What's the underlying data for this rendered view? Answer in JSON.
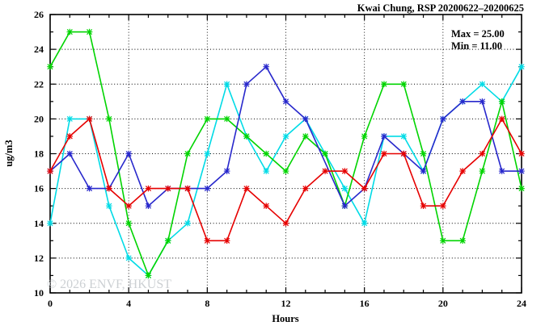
{
  "title": "Kwai Chung, RSP 20200622–20200625",
  "legend": {
    "max_label": "Max = 25.00",
    "min_label": "Min = 11.00"
  },
  "watermark": "© 2026 ENVF, HKUST",
  "chart_data": {
    "type": "line",
    "title": "Kwai Chung, RSP 20200622–20200625",
    "xlabel": "Hours",
    "ylabel": "ug/m3",
    "xlim": [
      0,
      24
    ],
    "ylim": [
      10,
      26
    ],
    "x_major_ticks": [
      0,
      4,
      8,
      12,
      16,
      20,
      24
    ],
    "y_major_ticks": [
      10,
      12,
      14,
      16,
      18,
      20,
      22,
      24,
      26
    ],
    "x_minor_step": 1,
    "y_minor_step": 1,
    "grid": "dotted-at-major-ticks",
    "legend_position": "top-right-inside",
    "x": [
      0,
      1,
      2,
      3,
      4,
      5,
      6,
      7,
      8,
      9,
      10,
      11,
      12,
      13,
      14,
      15,
      16,
      17,
      18,
      19,
      20,
      21,
      22,
      23,
      24
    ],
    "series": [
      {
        "name": "series-cyan",
        "color": "#00dbe6",
        "values": [
          14,
          20,
          20,
          15,
          12,
          11,
          13,
          14,
          18,
          22,
          19,
          17,
          19,
          20,
          18,
          16,
          14,
          19,
          19,
          17,
          20,
          21,
          22,
          21,
          23
        ]
      },
      {
        "name": "series-green",
        "color": "#00d400",
        "values": [
          23,
          25,
          25,
          20,
          14,
          11,
          13,
          18,
          20,
          20,
          19,
          18,
          17,
          19,
          18,
          15,
          19,
          22,
          22,
          18,
          13,
          13,
          17,
          21,
          16
        ]
      },
      {
        "name": "series-blue",
        "color": "#2828cc",
        "values": [
          17,
          18,
          16,
          16,
          18,
          15,
          16,
          16,
          16,
          17,
          22,
          23,
          21,
          20,
          17.5,
          15,
          16,
          19,
          18,
          17,
          20,
          21,
          21,
          17,
          17
        ]
      },
      {
        "name": "series-red",
        "color": "#e60000",
        "values": [
          17,
          19,
          20,
          16,
          15,
          16,
          16,
          16,
          13,
          13,
          16,
          15,
          14,
          16,
          17,
          17,
          16,
          18,
          18,
          15,
          15,
          17,
          18,
          20,
          18
        ]
      }
    ],
    "stats": {
      "max": 25.0,
      "min": 11.0
    }
  }
}
